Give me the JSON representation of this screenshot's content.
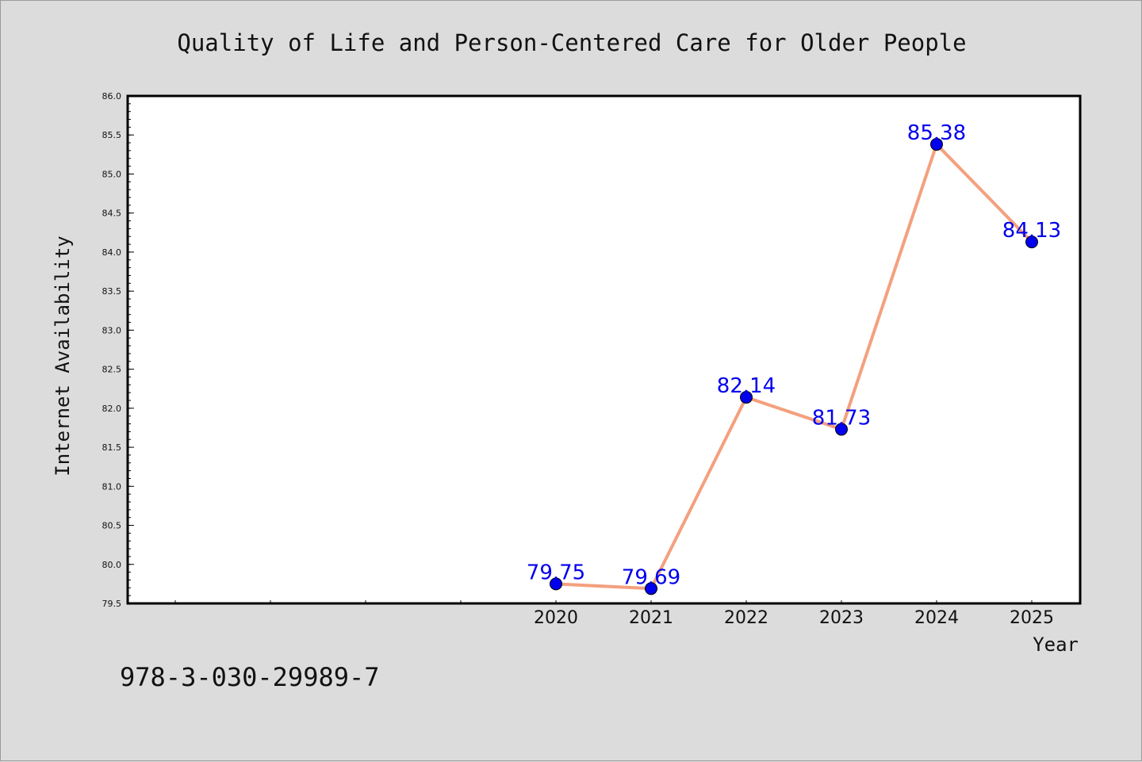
{
  "chart_data": {
    "type": "line",
    "title": "Quality of Life and Person-Centered Care for Older People",
    "xlabel": "Year",
    "ylabel": "Internet Availability",
    "x": [
      "2020",
      "2021",
      "2022",
      "2023",
      "2024",
      "2025"
    ],
    "series": [
      {
        "values": [
          79.75,
          79.69,
          82.14,
          81.73,
          85.38,
          84.13
        ],
        "data_labels": [
          "79.75",
          "79.69",
          "82.14",
          "81.73",
          "85.38",
          "84.13"
        ]
      }
    ],
    "ylim": [
      79.5,
      86.0
    ],
    "yticks": [
      "79.5",
      "80.0",
      "80.5",
      "81.0",
      "81.5",
      "82.0",
      "82.5",
      "83.0",
      "83.5",
      "84.0",
      "84.5",
      "85.0",
      "85.5",
      "86.0"
    ],
    "xticks": [
      "2020",
      "2021",
      "2022",
      "2023",
      "2024",
      "2025"
    ],
    "line_color": "#f4a07e",
    "marker_color": "#0000ee",
    "label_color": "#0000ee",
    "grid": false
  },
  "footer": {
    "isbn": "978-3-030-29989-7"
  }
}
